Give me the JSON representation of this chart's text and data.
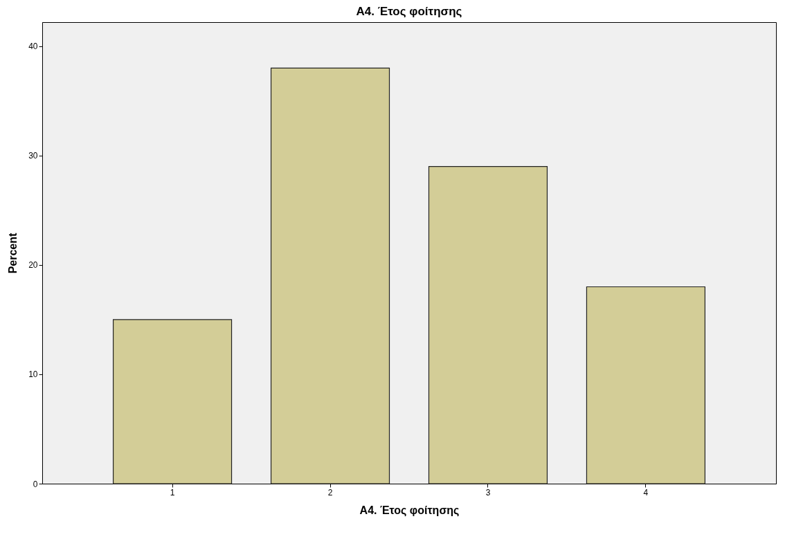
{
  "chart_data": {
    "type": "bar",
    "title": "A4. Έτος φοίτησης",
    "xlabel": "A4. Έτος φοίτησης",
    "ylabel": "Percent",
    "categories": [
      "1",
      "2",
      "3",
      "4"
    ],
    "values": [
      15,
      38,
      29,
      18
    ],
    "color": "#d3cd97",
    "ylim": [
      0,
      42.2
    ],
    "yticks": [
      0,
      10,
      20,
      30,
      40
    ],
    "grid": false
  }
}
